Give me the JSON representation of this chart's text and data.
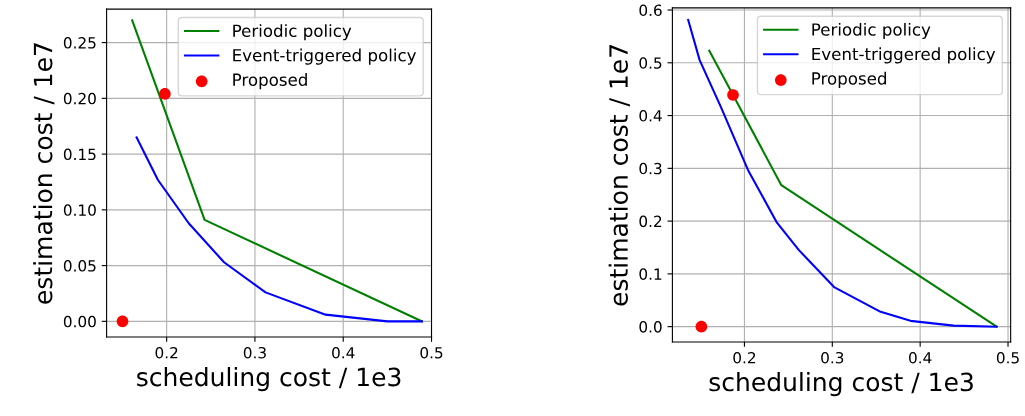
{
  "chart_data": [
    {
      "type": "line",
      "xlabel": "scheduling cost / 1e3",
      "ylabel": "estimation cost / 1e7",
      "xlim": [
        0.132,
        0.5
      ],
      "ylim": [
        -0.014,
        0.28
      ],
      "xticks": [
        0.2,
        0.3,
        0.4,
        0.5
      ],
      "yticks": [
        {
          "value": 0,
          "label": "0.00"
        },
        {
          "value": 0.05,
          "label": "0.05"
        },
        {
          "value": 0.1,
          "label": "0.10"
        },
        {
          "value": 0.15,
          "label": "0.15"
        },
        {
          "value": 0.2,
          "label": "0.20"
        },
        {
          "value": 0.25,
          "label": "0.25"
        }
      ],
      "grid": true,
      "legend": "top right",
      "series": [
        {
          "name": "Periodic policy",
          "color": "#008000",
          "x": [
            0.161,
            0.243,
            0.489
          ],
          "values": [
            0.27,
            0.091,
            0
          ]
        },
        {
          "name": "Event-triggered policy",
          "color": "#0000ff",
          "x": [
            0.166,
            0.19,
            0.225,
            0.265,
            0.312,
            0.38,
            0.45,
            0.489
          ],
          "values": [
            0.165,
            0.127,
            0.088,
            0.053,
            0.026,
            0.006,
            0,
            0
          ]
        },
        {
          "name": "Proposed",
          "type": "scatter",
          "color": "#ff0000",
          "x": [
            0.15,
            0.198
          ],
          "values": [
            0,
            0.204
          ]
        }
      ]
    },
    {
      "type": "line",
      "xlabel": "scheduling cost / 1e3",
      "ylabel": "estimation cost / 1e7",
      "xlim": [
        0.118,
        0.503
      ],
      "ylim": [
        -0.029,
        0.604
      ],
      "xticks": [
        0.2,
        0.3,
        0.4,
        0.5
      ],
      "yticks": [
        {
          "value": 0,
          "label": "0.0"
        },
        0.1,
        0.2,
        0.3,
        0.4,
        0.5,
        0.6
      ],
      "grid": true,
      "legend": "top right",
      "series": [
        {
          "name": "Periodic policy",
          "color": "#008000",
          "x": [
            0.16,
            0.242,
            0.487
          ],
          "values": [
            0.523,
            0.268,
            0
          ]
        },
        {
          "name": "Event-triggered policy",
          "color": "#0000ff",
          "x": [
            0.136,
            0.149,
            0.173,
            0.204,
            0.237,
            0.262,
            0.302,
            0.355,
            0.389,
            0.438,
            0.487
          ],
          "values": [
            0.581,
            0.505,
            0.417,
            0.297,
            0.197,
            0.145,
            0.075,
            0.028,
            0.011,
            0.002,
            0
          ]
        },
        {
          "name": "Proposed",
          "type": "scatter",
          "color": "#ff0000",
          "x": [
            0.151,
            0.187
          ],
          "values": [
            0,
            0.439
          ]
        }
      ]
    }
  ]
}
